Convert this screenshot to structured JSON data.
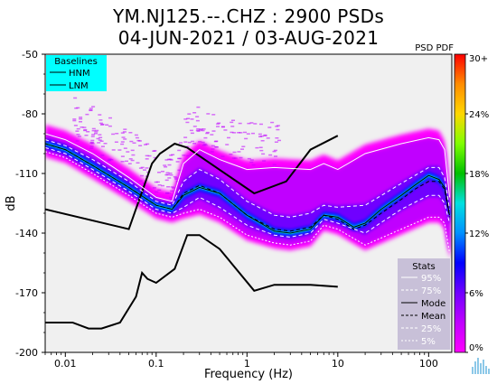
{
  "title": {
    "line1": "YM.NJ125.--.CHZ : 2900 PSDs",
    "line2": "04-JUN-2021 / 03-AUG-2021"
  },
  "colorbar": {
    "label": "PSD PDF",
    "tick_labels": [
      "30+",
      "24%",
      "18%",
      "12%",
      "6%",
      "0%"
    ],
    "colors": [
      "#ff0000",
      "#ff8c00",
      "#ffd700",
      "#7fff00",
      "#00c000",
      "#00e0e0",
      "#0090ff",
      "#0000ff",
      "#7000ff",
      "#c000ff",
      "#ff00ff"
    ]
  },
  "legend_baselines": {
    "title": "Baselines",
    "items": [
      "HNM",
      "LNM"
    ],
    "bg_color": "#00ffff"
  },
  "legend_stats": {
    "title": "Stats",
    "items": [
      "95%",
      "75%",
      "Mode",
      "Mean",
      "25%",
      "5%"
    ],
    "bg_color": "#c8c0d8"
  },
  "logo": {
    "name": "wave-logo-icon",
    "color": "#8cc8e8"
  },
  "chart_data": {
    "type": "line",
    "title": "YM.NJ125.--.CHZ : 2900 PSDs",
    "subtitle": "04-JUN-2021 / 03-AUG-2021",
    "xlabel": "Frequency (Hz)",
    "ylabel": "dB",
    "xscale": "log",
    "xlim": [
      0.006,
      180
    ],
    "ylim": [
      -200,
      -50
    ],
    "x_tick_labels": [
      "0.01",
      "0.1",
      "1",
      "10",
      "100"
    ],
    "y_tick_labels": [
      "-50",
      "-80",
      "-110",
      "-140",
      "-170",
      "-200"
    ],
    "grid": false,
    "background_color": "#f0f0f0",
    "pdf_colors": [
      "#ff00ff",
      "#c000ff",
      "#7000ff",
      "#0000ff",
      "#0090ff",
      "#00e0e0",
      "#00c000",
      "#7fff00",
      "#ffd700",
      "#ff8c00",
      "#ff0000"
    ],
    "baselines": [
      {
        "name": "HNM",
        "x": [
          0.006,
          0.05,
          0.09,
          0.11,
          0.16,
          0.22,
          1.2,
          2.7,
          5,
          10
        ],
        "y": [
          -128,
          -138,
          -105,
          -100,
          -95,
          -97,
          -120,
          -114,
          -98,
          -91
        ]
      },
      {
        "name": "LNM",
        "x": [
          0.006,
          0.012,
          0.018,
          0.025,
          0.04,
          0.06,
          0.07,
          0.08,
          0.1,
          0.16,
          0.22,
          0.3,
          0.5,
          1.2,
          2,
          5,
          10
        ],
        "y": [
          -185,
          -185,
          -188,
          -188,
          -185,
          -172,
          -160,
          -163,
          -165,
          -158,
          -141,
          -141,
          -148,
          -169,
          -166,
          -166,
          -167
        ]
      }
    ],
    "series": [
      {
        "name": "95%",
        "x": [
          0.006,
          0.01,
          0.02,
          0.05,
          0.1,
          0.15,
          0.2,
          0.3,
          0.5,
          1,
          2,
          5,
          7,
          10,
          20,
          50,
          100,
          130,
          150,
          170
        ],
        "y": [
          -90,
          -93,
          -100,
          -112,
          -122,
          -124,
          -105,
          -98,
          -103,
          -108,
          -107,
          -108,
          -105,
          -108,
          -100,
          -95,
          -92,
          -93,
          -98,
          -122
        ]
      },
      {
        "name": "75%",
        "x": [
          0.006,
          0.01,
          0.02,
          0.05,
          0.1,
          0.15,
          0.2,
          0.3,
          0.5,
          1,
          2,
          3,
          5,
          7,
          10,
          20,
          50,
          100,
          130,
          150,
          170
        ],
        "y": [
          -93,
          -96,
          -103,
          -114,
          -124,
          -126,
          -114,
          -108,
          -113,
          -124,
          -131,
          -132,
          -130,
          -126,
          -127,
          -126,
          -115,
          -107,
          -107,
          -112,
          -128
        ]
      },
      {
        "name": "Mode",
        "x": [
          0.006,
          0.01,
          0.02,
          0.05,
          0.1,
          0.15,
          0.2,
          0.3,
          0.5,
          1,
          2,
          3,
          5,
          7,
          10,
          15,
          20,
          30,
          50,
          70,
          100,
          130,
          150,
          170
        ],
        "y": [
          -95,
          -98,
          -106,
          -117,
          -126,
          -128,
          -121,
          -117,
          -120,
          -131,
          -139,
          -140,
          -138,
          -131,
          -132,
          -137,
          -135,
          -128,
          -121,
          -116,
          -111,
          -113,
          -117,
          -131
        ]
      },
      {
        "name": "Mean",
        "x": [
          0.006,
          0.01,
          0.02,
          0.05,
          0.1,
          0.15,
          0.2,
          0.3,
          0.5,
          1,
          2,
          3,
          5,
          7,
          10,
          15,
          20,
          30,
          50,
          70,
          100,
          130,
          150,
          170
        ],
        "y": [
          -95,
          -98,
          -106,
          -117,
          -126,
          -128,
          -120,
          -116,
          -120,
          -131,
          -138,
          -139,
          -137,
          -131,
          -133,
          -138,
          -136,
          -130,
          -123,
          -118,
          -114,
          -114,
          -118,
          -132
        ]
      },
      {
        "name": "25%",
        "x": [
          0.006,
          0.01,
          0.02,
          0.05,
          0.1,
          0.15,
          0.2,
          0.3,
          0.5,
          1,
          2,
          3,
          5,
          7,
          10,
          20,
          50,
          100,
          130,
          150,
          170
        ],
        "y": [
          -97,
          -100,
          -108,
          -119,
          -128,
          -130,
          -127,
          -122,
          -127,
          -136,
          -141,
          -142,
          -140,
          -133,
          -135,
          -140,
          -128,
          -121,
          -121,
          -125,
          -135
        ]
      },
      {
        "name": "5%",
        "x": [
          0.006,
          0.01,
          0.02,
          0.05,
          0.1,
          0.15,
          0.2,
          0.3,
          0.5,
          1,
          2,
          3,
          5,
          7,
          10,
          20,
          50,
          100,
          130,
          150,
          170
        ],
        "y": [
          -99,
          -102,
          -110,
          -121,
          -130,
          -132,
          -130,
          -128,
          -132,
          -141,
          -145,
          -146,
          -144,
          -136,
          -138,
          -146,
          -138,
          -132,
          -132,
          -135,
          -150
        ]
      }
    ]
  }
}
